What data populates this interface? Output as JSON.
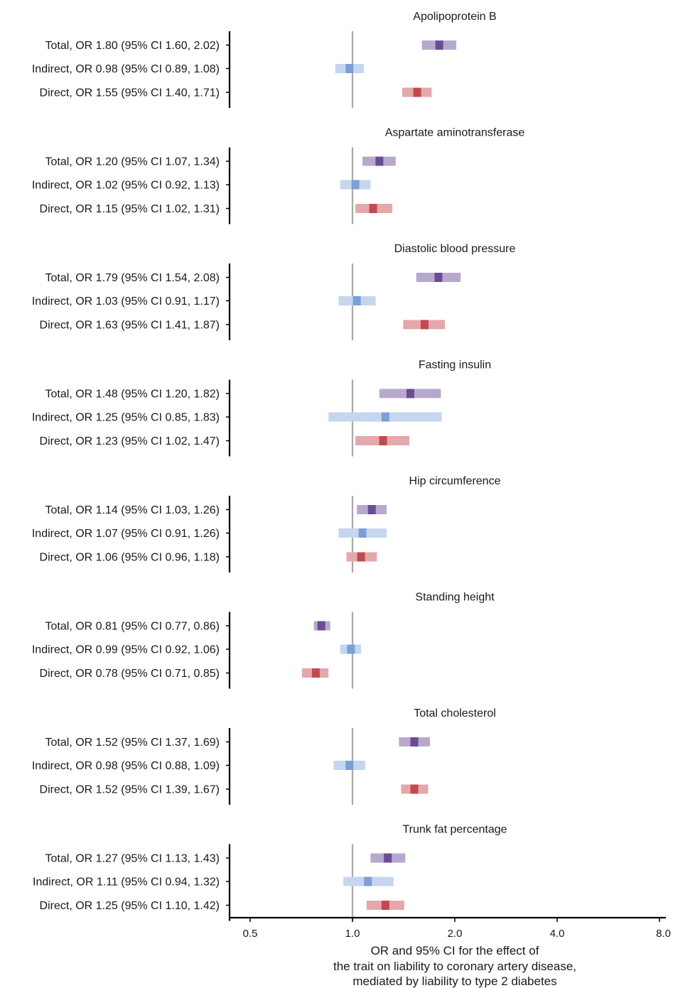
{
  "chart_data": {
    "type": "forest",
    "xscale": "log2",
    "xlim": [
      0.5,
      8.0
    ],
    "reference_line": 1.0,
    "xticks": [
      {
        "value": 0.5,
        "label": "0.5"
      },
      {
        "value": 1.0,
        "label": "1.0"
      },
      {
        "value": 2.0,
        "label": "2.0"
      },
      {
        "value": 4.0,
        "label": "4.0"
      },
      {
        "value": 8.0,
        "label": "8.0"
      }
    ],
    "xlabel": [
      "OR and 95% CI for the effect of",
      "the trait on liability to coronary artery disease,",
      "mediated by liability to type 2 diabetes"
    ],
    "colors": {
      "Total": {
        "bar": "#b7a9cc",
        "point": "#6b4c94"
      },
      "Indirect": {
        "bar": "#c5d6ee",
        "point": "#7b9fd6"
      },
      "Direct": {
        "bar": "#e3a8ab",
        "point": "#c24a4e"
      },
      "reference": "#a9a9a9",
      "axis": "#000000"
    },
    "panels": [
      {
        "title": "Apolipoprotein B",
        "rows": [
          {
            "type": "Total",
            "label": "Total, OR 1.80 (95% CI 1.60, 2.02)",
            "or": 1.8,
            "lo": 1.6,
            "hi": 2.02
          },
          {
            "type": "Indirect",
            "label": "Indirect, OR 0.98 (95% CI 0.89, 1.08)",
            "or": 0.98,
            "lo": 0.89,
            "hi": 1.08
          },
          {
            "type": "Direct",
            "label": "Direct, OR 1.55 (95% CI 1.40, 1.71)",
            "or": 1.55,
            "lo": 1.4,
            "hi": 1.71
          }
        ]
      },
      {
        "title": "Aspartate aminotransferase",
        "rows": [
          {
            "type": "Total",
            "label": "Total, OR 1.20 (95% CI 1.07, 1.34)",
            "or": 1.2,
            "lo": 1.07,
            "hi": 1.34
          },
          {
            "type": "Indirect",
            "label": "Indirect, OR 1.02 (95% CI 0.92, 1.13)",
            "or": 1.02,
            "lo": 0.92,
            "hi": 1.13
          },
          {
            "type": "Direct",
            "label": "Direct, OR 1.15 (95% CI 1.02, 1.31)",
            "or": 1.15,
            "lo": 1.02,
            "hi": 1.31
          }
        ]
      },
      {
        "title": "Diastolic blood pressure",
        "rows": [
          {
            "type": "Total",
            "label": "Total, OR 1.79 (95% CI 1.54, 2.08)",
            "or": 1.79,
            "lo": 1.54,
            "hi": 2.08
          },
          {
            "type": "Indirect",
            "label": "Indirect, OR 1.03 (95% CI 0.91, 1.17)",
            "or": 1.03,
            "lo": 0.91,
            "hi": 1.17
          },
          {
            "type": "Direct",
            "label": "Direct, OR 1.63 (95% CI 1.41, 1.87)",
            "or": 1.63,
            "lo": 1.41,
            "hi": 1.87
          }
        ]
      },
      {
        "title": "Fasting insulin",
        "rows": [
          {
            "type": "Total",
            "label": "Total, OR 1.48 (95% CI 1.20, 1.82)",
            "or": 1.48,
            "lo": 1.2,
            "hi": 1.82
          },
          {
            "type": "Indirect",
            "label": "Indirect, OR 1.25 (95% CI 0.85, 1.83)",
            "or": 1.25,
            "lo": 0.85,
            "hi": 1.83
          },
          {
            "type": "Direct",
            "label": "Direct, OR 1.23 (95% CI 1.02, 1.47)",
            "or": 1.23,
            "lo": 1.02,
            "hi": 1.47
          }
        ]
      },
      {
        "title": "Hip circumference",
        "rows": [
          {
            "type": "Total",
            "label": "Total, OR 1.14 (95% CI 1.03, 1.26)",
            "or": 1.14,
            "lo": 1.03,
            "hi": 1.26
          },
          {
            "type": "Indirect",
            "label": "Indirect, OR 1.07 (95% CI 0.91, 1.26)",
            "or": 1.07,
            "lo": 0.91,
            "hi": 1.26
          },
          {
            "type": "Direct",
            "label": "Direct, OR 1.06 (95% CI 0.96, 1.18)",
            "or": 1.06,
            "lo": 0.96,
            "hi": 1.18
          }
        ]
      },
      {
        "title": "Standing height",
        "rows": [
          {
            "type": "Total",
            "label": "Total, OR 0.81 (95% CI 0.77, 0.86)",
            "or": 0.81,
            "lo": 0.77,
            "hi": 0.86
          },
          {
            "type": "Indirect",
            "label": "Indirect, OR 0.99 (95% CI 0.92, 1.06)",
            "or": 0.99,
            "lo": 0.92,
            "hi": 1.06
          },
          {
            "type": "Direct",
            "label": "Direct, OR 0.78 (95% CI 0.71, 0.85)",
            "or": 0.78,
            "lo": 0.71,
            "hi": 0.85
          }
        ]
      },
      {
        "title": "Total cholesterol",
        "rows": [
          {
            "type": "Total",
            "label": "Total, OR 1.52 (95% CI 1.37, 1.69)",
            "or": 1.52,
            "lo": 1.37,
            "hi": 1.69
          },
          {
            "type": "Indirect",
            "label": "Indirect, OR 0.98 (95% CI 0.88, 1.09)",
            "or": 0.98,
            "lo": 0.88,
            "hi": 1.09
          },
          {
            "type": "Direct",
            "label": "Direct, OR 1.52 (95% CI 1.39, 1.67)",
            "or": 1.52,
            "lo": 1.39,
            "hi": 1.67
          }
        ]
      },
      {
        "title": "Trunk fat percentage",
        "rows": [
          {
            "type": "Total",
            "label": "Total, OR 1.27 (95% CI 1.13, 1.43)",
            "or": 1.27,
            "lo": 1.13,
            "hi": 1.43
          },
          {
            "type": "Indirect",
            "label": "Indirect, OR 1.11 (95% CI 0.94, 1.32)",
            "or": 1.11,
            "lo": 0.94,
            "hi": 1.32
          },
          {
            "type": "Direct",
            "label": "Direct, OR 1.25 (95% CI 1.10, 1.42)",
            "or": 1.25,
            "lo": 1.1,
            "hi": 1.42
          }
        ]
      }
    ]
  }
}
